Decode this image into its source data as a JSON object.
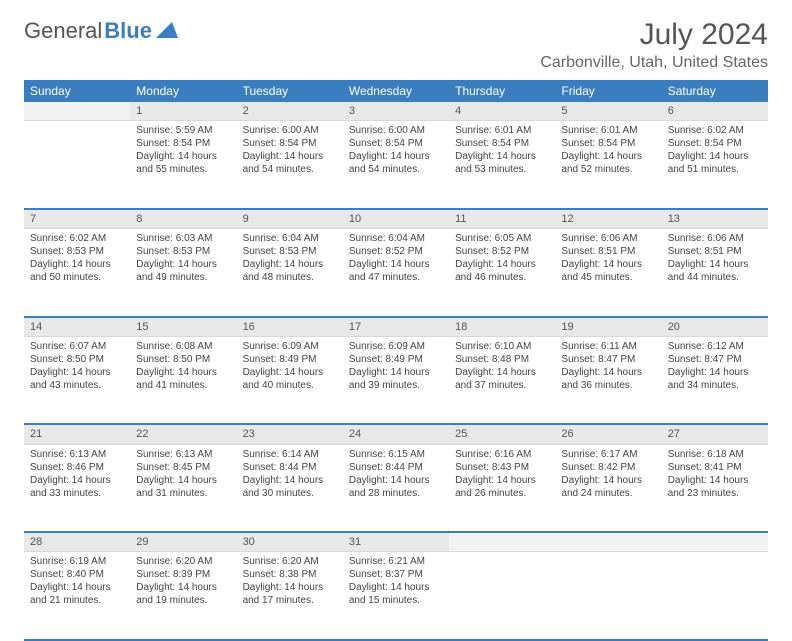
{
  "logo": {
    "text1": "General",
    "text2": "Blue"
  },
  "title": "July 2024",
  "location": "Carbonville, Utah, United States",
  "colors": {
    "header_bg": "#3a7ebf",
    "header_text": "#ffffff",
    "daynum_bg": "#e8e8e8",
    "border": "#3a7ebf"
  },
  "weekdays": [
    "Sunday",
    "Monday",
    "Tuesday",
    "Wednesday",
    "Thursday",
    "Friday",
    "Saturday"
  ],
  "weeks": [
    [
      null,
      {
        "n": "1",
        "sr": "Sunrise: 5:59 AM",
        "ss": "Sunset: 8:54 PM",
        "d1": "Daylight: 14 hours",
        "d2": "and 55 minutes."
      },
      {
        "n": "2",
        "sr": "Sunrise: 6:00 AM",
        "ss": "Sunset: 8:54 PM",
        "d1": "Daylight: 14 hours",
        "d2": "and 54 minutes."
      },
      {
        "n": "3",
        "sr": "Sunrise: 6:00 AM",
        "ss": "Sunset: 8:54 PM",
        "d1": "Daylight: 14 hours",
        "d2": "and 54 minutes."
      },
      {
        "n": "4",
        "sr": "Sunrise: 6:01 AM",
        "ss": "Sunset: 8:54 PM",
        "d1": "Daylight: 14 hours",
        "d2": "and 53 minutes."
      },
      {
        "n": "5",
        "sr": "Sunrise: 6:01 AM",
        "ss": "Sunset: 8:54 PM",
        "d1": "Daylight: 14 hours",
        "d2": "and 52 minutes."
      },
      {
        "n": "6",
        "sr": "Sunrise: 6:02 AM",
        "ss": "Sunset: 8:54 PM",
        "d1": "Daylight: 14 hours",
        "d2": "and 51 minutes."
      }
    ],
    [
      {
        "n": "7",
        "sr": "Sunrise: 6:02 AM",
        "ss": "Sunset: 8:53 PM",
        "d1": "Daylight: 14 hours",
        "d2": "and 50 minutes."
      },
      {
        "n": "8",
        "sr": "Sunrise: 6:03 AM",
        "ss": "Sunset: 8:53 PM",
        "d1": "Daylight: 14 hours",
        "d2": "and 49 minutes."
      },
      {
        "n": "9",
        "sr": "Sunrise: 6:04 AM",
        "ss": "Sunset: 8:53 PM",
        "d1": "Daylight: 14 hours",
        "d2": "and 48 minutes."
      },
      {
        "n": "10",
        "sr": "Sunrise: 6:04 AM",
        "ss": "Sunset: 8:52 PM",
        "d1": "Daylight: 14 hours",
        "d2": "and 47 minutes."
      },
      {
        "n": "11",
        "sr": "Sunrise: 6:05 AM",
        "ss": "Sunset: 8:52 PM",
        "d1": "Daylight: 14 hours",
        "d2": "and 46 minutes."
      },
      {
        "n": "12",
        "sr": "Sunrise: 6:06 AM",
        "ss": "Sunset: 8:51 PM",
        "d1": "Daylight: 14 hours",
        "d2": "and 45 minutes."
      },
      {
        "n": "13",
        "sr": "Sunrise: 6:06 AM",
        "ss": "Sunset: 8:51 PM",
        "d1": "Daylight: 14 hours",
        "d2": "and 44 minutes."
      }
    ],
    [
      {
        "n": "14",
        "sr": "Sunrise: 6:07 AM",
        "ss": "Sunset: 8:50 PM",
        "d1": "Daylight: 14 hours",
        "d2": "and 43 minutes."
      },
      {
        "n": "15",
        "sr": "Sunrise: 6:08 AM",
        "ss": "Sunset: 8:50 PM",
        "d1": "Daylight: 14 hours",
        "d2": "and 41 minutes."
      },
      {
        "n": "16",
        "sr": "Sunrise: 6:09 AM",
        "ss": "Sunset: 8:49 PM",
        "d1": "Daylight: 14 hours",
        "d2": "and 40 minutes."
      },
      {
        "n": "17",
        "sr": "Sunrise: 6:09 AM",
        "ss": "Sunset: 8:49 PM",
        "d1": "Daylight: 14 hours",
        "d2": "and 39 minutes."
      },
      {
        "n": "18",
        "sr": "Sunrise: 6:10 AM",
        "ss": "Sunset: 8:48 PM",
        "d1": "Daylight: 14 hours",
        "d2": "and 37 minutes."
      },
      {
        "n": "19",
        "sr": "Sunrise: 6:11 AM",
        "ss": "Sunset: 8:47 PM",
        "d1": "Daylight: 14 hours",
        "d2": "and 36 minutes."
      },
      {
        "n": "20",
        "sr": "Sunrise: 6:12 AM",
        "ss": "Sunset: 8:47 PM",
        "d1": "Daylight: 14 hours",
        "d2": "and 34 minutes."
      }
    ],
    [
      {
        "n": "21",
        "sr": "Sunrise: 6:13 AM",
        "ss": "Sunset: 8:46 PM",
        "d1": "Daylight: 14 hours",
        "d2": "and 33 minutes."
      },
      {
        "n": "22",
        "sr": "Sunrise: 6:13 AM",
        "ss": "Sunset: 8:45 PM",
        "d1": "Daylight: 14 hours",
        "d2": "and 31 minutes."
      },
      {
        "n": "23",
        "sr": "Sunrise: 6:14 AM",
        "ss": "Sunset: 8:44 PM",
        "d1": "Daylight: 14 hours",
        "d2": "and 30 minutes."
      },
      {
        "n": "24",
        "sr": "Sunrise: 6:15 AM",
        "ss": "Sunset: 8:44 PM",
        "d1": "Daylight: 14 hours",
        "d2": "and 28 minutes."
      },
      {
        "n": "25",
        "sr": "Sunrise: 6:16 AM",
        "ss": "Sunset: 8:43 PM",
        "d1": "Daylight: 14 hours",
        "d2": "and 26 minutes."
      },
      {
        "n": "26",
        "sr": "Sunrise: 6:17 AM",
        "ss": "Sunset: 8:42 PM",
        "d1": "Daylight: 14 hours",
        "d2": "and 24 minutes."
      },
      {
        "n": "27",
        "sr": "Sunrise: 6:18 AM",
        "ss": "Sunset: 8:41 PM",
        "d1": "Daylight: 14 hours",
        "d2": "and 23 minutes."
      }
    ],
    [
      {
        "n": "28",
        "sr": "Sunrise: 6:19 AM",
        "ss": "Sunset: 8:40 PM",
        "d1": "Daylight: 14 hours",
        "d2": "and 21 minutes."
      },
      {
        "n": "29",
        "sr": "Sunrise: 6:20 AM",
        "ss": "Sunset: 8:39 PM",
        "d1": "Daylight: 14 hours",
        "d2": "and 19 minutes."
      },
      {
        "n": "30",
        "sr": "Sunrise: 6:20 AM",
        "ss": "Sunset: 8:38 PM",
        "d1": "Daylight: 14 hours",
        "d2": "and 17 minutes."
      },
      {
        "n": "31",
        "sr": "Sunrise: 6:21 AM",
        "ss": "Sunset: 8:37 PM",
        "d1": "Daylight: 14 hours",
        "d2": "and 15 minutes."
      },
      null,
      null,
      null
    ]
  ]
}
